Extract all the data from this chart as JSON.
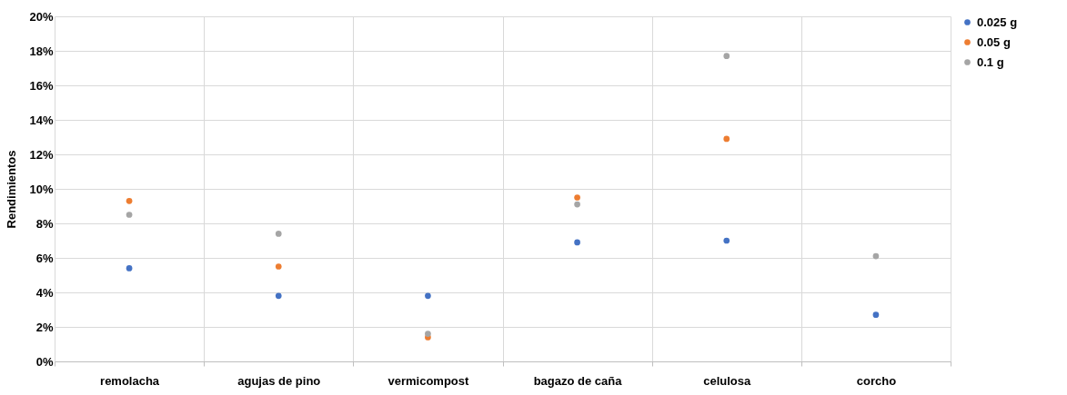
{
  "chart_data": {
    "type": "scatter",
    "ylabel": "Rendimientos",
    "categories": [
      "remolacha",
      "agujas de pino",
      "vermicompost",
      "bagazo de caña",
      "celulosa",
      "corcho"
    ],
    "series": [
      {
        "name": "0.025 g",
        "color": "#4472c4",
        "values": [
          5.4,
          3.8,
          3.8,
          6.9,
          7.0,
          2.7
        ]
      },
      {
        "name": "0.05 g",
        "color": "#ed7d31",
        "values": [
          9.3,
          5.5,
          1.4,
          9.5,
          12.9,
          null
        ]
      },
      {
        "name": "0.1 g",
        "color": "#a5a5a5",
        "values": [
          8.5,
          7.4,
          1.6,
          9.1,
          17.7,
          6.1
        ]
      }
    ],
    "ylim": [
      0,
      20
    ],
    "yticks": [
      {
        "value": 0,
        "label": "0%"
      },
      {
        "value": 2,
        "label": "2%"
      },
      {
        "value": 4,
        "label": "4%"
      },
      {
        "value": 6,
        "label": "6%"
      },
      {
        "value": 8,
        "label": "8%"
      },
      {
        "value": 10,
        "label": "10%"
      },
      {
        "value": 12,
        "label": "12%"
      },
      {
        "value": 14,
        "label": "14%"
      },
      {
        "value": 16,
        "label": "16%"
      },
      {
        "value": 18,
        "label": "18%"
      },
      {
        "value": 20,
        "label": "20%"
      }
    ],
    "grid": true,
    "legend": "right",
    "marker": "circle"
  }
}
